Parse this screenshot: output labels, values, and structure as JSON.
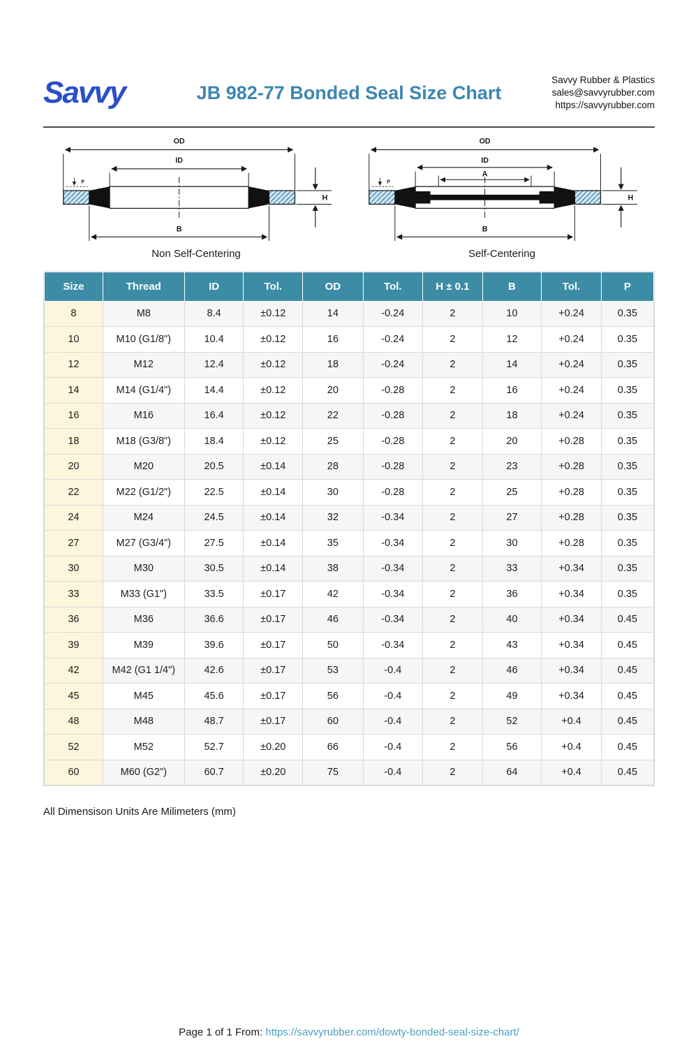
{
  "header": {
    "logo_text": "Savvy",
    "title": "JB 982-77 Bonded Seal Size Chart",
    "company": "Savvy Rubber & Plastics",
    "email": "sales@savvyrubber.com",
    "website": "https://savvyrubber.com"
  },
  "diagrams": {
    "non_self_centering": {
      "caption": "Non Self-Centering",
      "labels": {
        "od": "OD",
        "id": "ID",
        "b": "B",
        "h": "H",
        "p": "P"
      }
    },
    "self_centering": {
      "caption": "Self-Centering",
      "labels": {
        "od": "OD",
        "id": "ID",
        "a": "A",
        "b": "B",
        "h": "H",
        "p": "P"
      }
    }
  },
  "table": {
    "columns": [
      "Size",
      "Thread",
      "ID",
      "Tol.",
      "OD",
      "Tol.",
      "H ± 0.1",
      "B",
      "Tol.",
      "P"
    ],
    "rows": [
      [
        "8",
        "M8",
        "8.4",
        "±0.12",
        "14",
        "-0.24",
        "2",
        "10",
        "+0.24",
        "0.35"
      ],
      [
        "10",
        "M10 (G1/8\")",
        "10.4",
        "±0.12",
        "16",
        "-0.24",
        "2",
        "12",
        "+0.24",
        "0.35"
      ],
      [
        "12",
        "M12",
        "12.4",
        "±0.12",
        "18",
        "-0.24",
        "2",
        "14",
        "+0.24",
        "0.35"
      ],
      [
        "14",
        "M14 (G1/4\")",
        "14.4",
        "±0.12",
        "20",
        "-0.28",
        "2",
        "16",
        "+0.24",
        "0.35"
      ],
      [
        "16",
        "M16",
        "16.4",
        "±0.12",
        "22",
        "-0.28",
        "2",
        "18",
        "+0.24",
        "0.35"
      ],
      [
        "18",
        "M18 (G3/8\")",
        "18.4",
        "±0.12",
        "25",
        "-0.28",
        "2",
        "20",
        "+0.28",
        "0.35"
      ],
      [
        "20",
        "M20",
        "20.5",
        "±0.14",
        "28",
        "-0.28",
        "2",
        "23",
        "+0.28",
        "0.35"
      ],
      [
        "22",
        "M22 (G1/2\")",
        "22.5",
        "±0.14",
        "30",
        "-0.28",
        "2",
        "25",
        "+0.28",
        "0.35"
      ],
      [
        "24",
        "M24",
        "24.5",
        "±0.14",
        "32",
        "-0.34",
        "2",
        "27",
        "+0.28",
        "0.35"
      ],
      [
        "27",
        "M27 (G3/4\")",
        "27.5",
        "±0.14",
        "35",
        "-0.34",
        "2",
        "30",
        "+0.28",
        "0.35"
      ],
      [
        "30",
        "M30",
        "30.5",
        "±0.14",
        "38",
        "-0.34",
        "2",
        "33",
        "+0.34",
        "0.35"
      ],
      [
        "33",
        "M33 (G1\")",
        "33.5",
        "±0.17",
        "42",
        "-0.34",
        "2",
        "36",
        "+0.34",
        "0.35"
      ],
      [
        "36",
        "M36",
        "36.6",
        "±0.17",
        "46",
        "-0.34",
        "2",
        "40",
        "+0.34",
        "0.45"
      ],
      [
        "39",
        "M39",
        "39.6",
        "±0.17",
        "50",
        "-0.34",
        "2",
        "43",
        "+0.34",
        "0.45"
      ],
      [
        "42",
        "M42 (G1 1/4\")",
        "42.6",
        "±0.17",
        "53",
        "-0.4",
        "2",
        "46",
        "+0.34",
        "0.45"
      ],
      [
        "45",
        "M45",
        "45.6",
        "±0.17",
        "56",
        "-0.4",
        "2",
        "49",
        "+0.34",
        "0.45"
      ],
      [
        "48",
        "M48",
        "48.7",
        "±0.17",
        "60",
        "-0.4",
        "2",
        "52",
        "+0.4",
        "0.45"
      ],
      [
        "52",
        "M52",
        "52.7",
        "±0.20",
        "66",
        "-0.4",
        "2",
        "56",
        "+0.4",
        "0.45"
      ],
      [
        "60",
        "M60 (G2\")",
        "60.7",
        "±0.20",
        "75",
        "-0.4",
        "2",
        "64",
        "+0.4",
        "0.45"
      ]
    ]
  },
  "note": "All Dimensison Units Are Milimeters (mm)",
  "footer": {
    "page_info": "Page 1 of 1 From:",
    "source_url": "https://savvyrubber.com/dowty-bonded-seal-size-chart/"
  },
  "colors": {
    "logo_blue": "#2b4fc8",
    "title_teal": "#3c86b2",
    "table_header_teal": "#3d8ca6",
    "size_column_cream": "#fdf6dc",
    "row_alt_gray": "#f6f6f6",
    "link_teal": "#4b9fc0",
    "washer_hatch_blue": "#cfe9f6"
  }
}
